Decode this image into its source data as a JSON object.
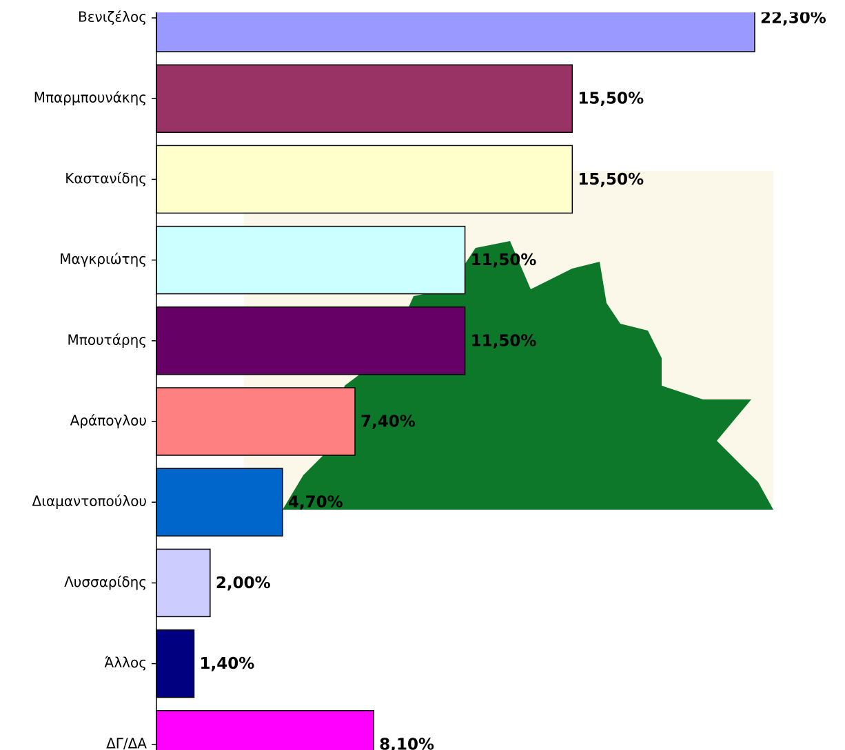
{
  "chart_data": {
    "type": "bar",
    "orientation": "horizontal",
    "categories": [
      "Βενιζέλος",
      "Μπαρμπουνάκης",
      "Καστανίδης",
      "Μαγκριώτης",
      "Μπουτάρης",
      "Αράπογλου",
      "Διαμαντοπούλου",
      "Λυσσαρίδης",
      "Άλλος",
      "ΔΓ/ΔΑ"
    ],
    "values": [
      22.3,
      15.5,
      15.5,
      11.5,
      11.5,
      7.4,
      4.7,
      2.0,
      1.4,
      8.1
    ],
    "value_labels": [
      "22,30%",
      "15,50%",
      "15,50%",
      "11,50%",
      "11,50%",
      "7,40%",
      "4,70%",
      "2,00%",
      "1,40%",
      "8,10%"
    ],
    "colors": [
      "#9999ff",
      "#993366",
      "#ffffcc",
      "#ccffff",
      "#660066",
      "#ff8080",
      "#0066cc",
      "#ccccff",
      "#000080",
      "#ff00ff"
    ]
  }
}
